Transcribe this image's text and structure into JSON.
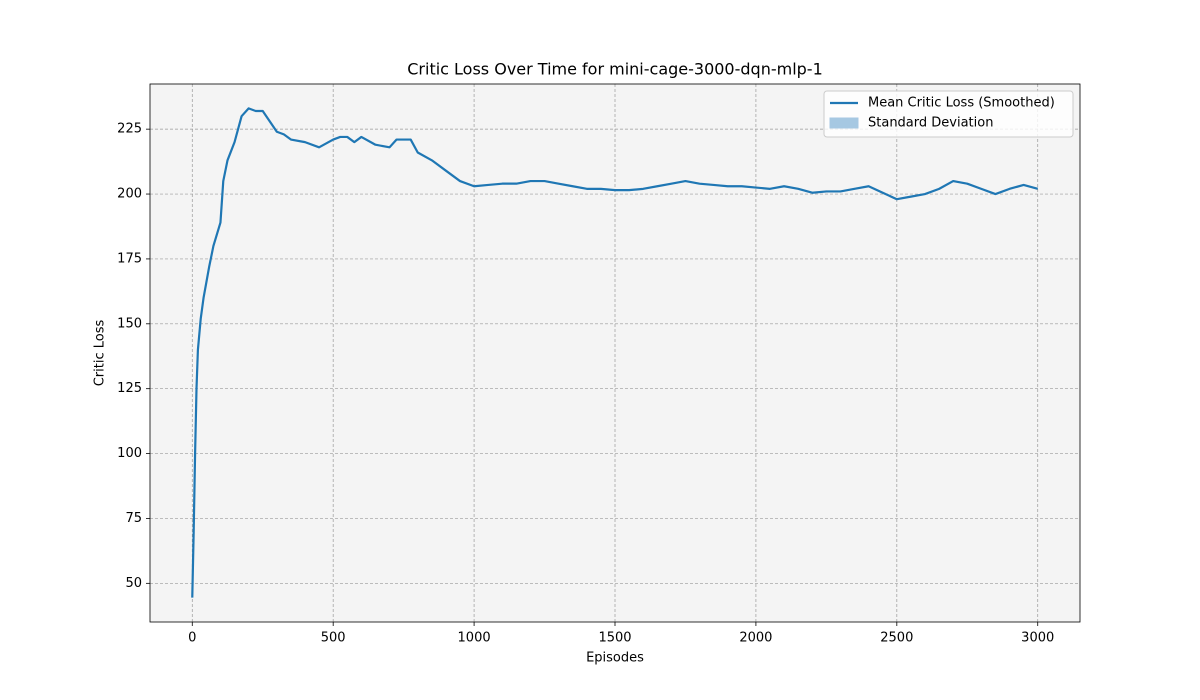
{
  "chart_data": {
    "type": "line",
    "title": "Critic Loss Over Time for mini-cage-3000-dqn-mlp-1",
    "x_label": "Episodes",
    "y_label": "Critic Loss",
    "x": [
      0,
      5,
      10,
      15,
      20,
      30,
      40,
      50,
      60,
      75,
      100,
      110,
      125,
      150,
      175,
      200,
      225,
      250,
      275,
      300,
      325,
      350,
      400,
      450,
      500,
      525,
      550,
      575,
      600,
      650,
      700,
      725,
      750,
      775,
      800,
      850,
      900,
      950,
      1000,
      1050,
      1100,
      1150,
      1200,
      1250,
      1300,
      1350,
      1400,
      1450,
      1500,
      1550,
      1600,
      1650,
      1700,
      1750,
      1800,
      1850,
      1900,
      1950,
      2000,
      2050,
      2100,
      2150,
      2200,
      2250,
      2300,
      2350,
      2400,
      2450,
      2500,
      2550,
      2600,
      2650,
      2700,
      2750,
      2800,
      2850,
      2900,
      2950,
      3000
    ],
    "series": [
      {
        "name": "Mean Critic Loss (Smoothed)",
        "color": "#1f77b4",
        "values": [
          44.5,
          70,
          100,
          125,
          140,
          152,
          160,
          166,
          172,
          180,
          189,
          205,
          213,
          220,
          230,
          233,
          232,
          232,
          228,
          224,
          223,
          221,
          220,
          218,
          221,
          222,
          222,
          220,
          222,
          219,
          218,
          221,
          221,
          221,
          216,
          213,
          209,
          205,
          203,
          203.5,
          204,
          204,
          205,
          205,
          204,
          203,
          202,
          202,
          201.5,
          201.5,
          202,
          203,
          204,
          205,
          204,
          203.5,
          203,
          203,
          202.5,
          202,
          203,
          202,
          200.5,
          201,
          201,
          202,
          203,
          200.5,
          198,
          199,
          200,
          202,
          205,
          204,
          202,
          200,
          202,
          203.5,
          202
        ]
      },
      {
        "name": "Standard Deviation",
        "color": "#a6c8e2"
      }
    ],
    "xlim": [
      -150,
      3150
    ],
    "ylim": [
      35.1,
      242.4
    ],
    "xticks": [
      0,
      500,
      1000,
      1500,
      2000,
      2500,
      3000
    ],
    "yticks": [
      50,
      75,
      100,
      125,
      150,
      175,
      200,
      225
    ],
    "grid": true,
    "legend": "upper right"
  }
}
